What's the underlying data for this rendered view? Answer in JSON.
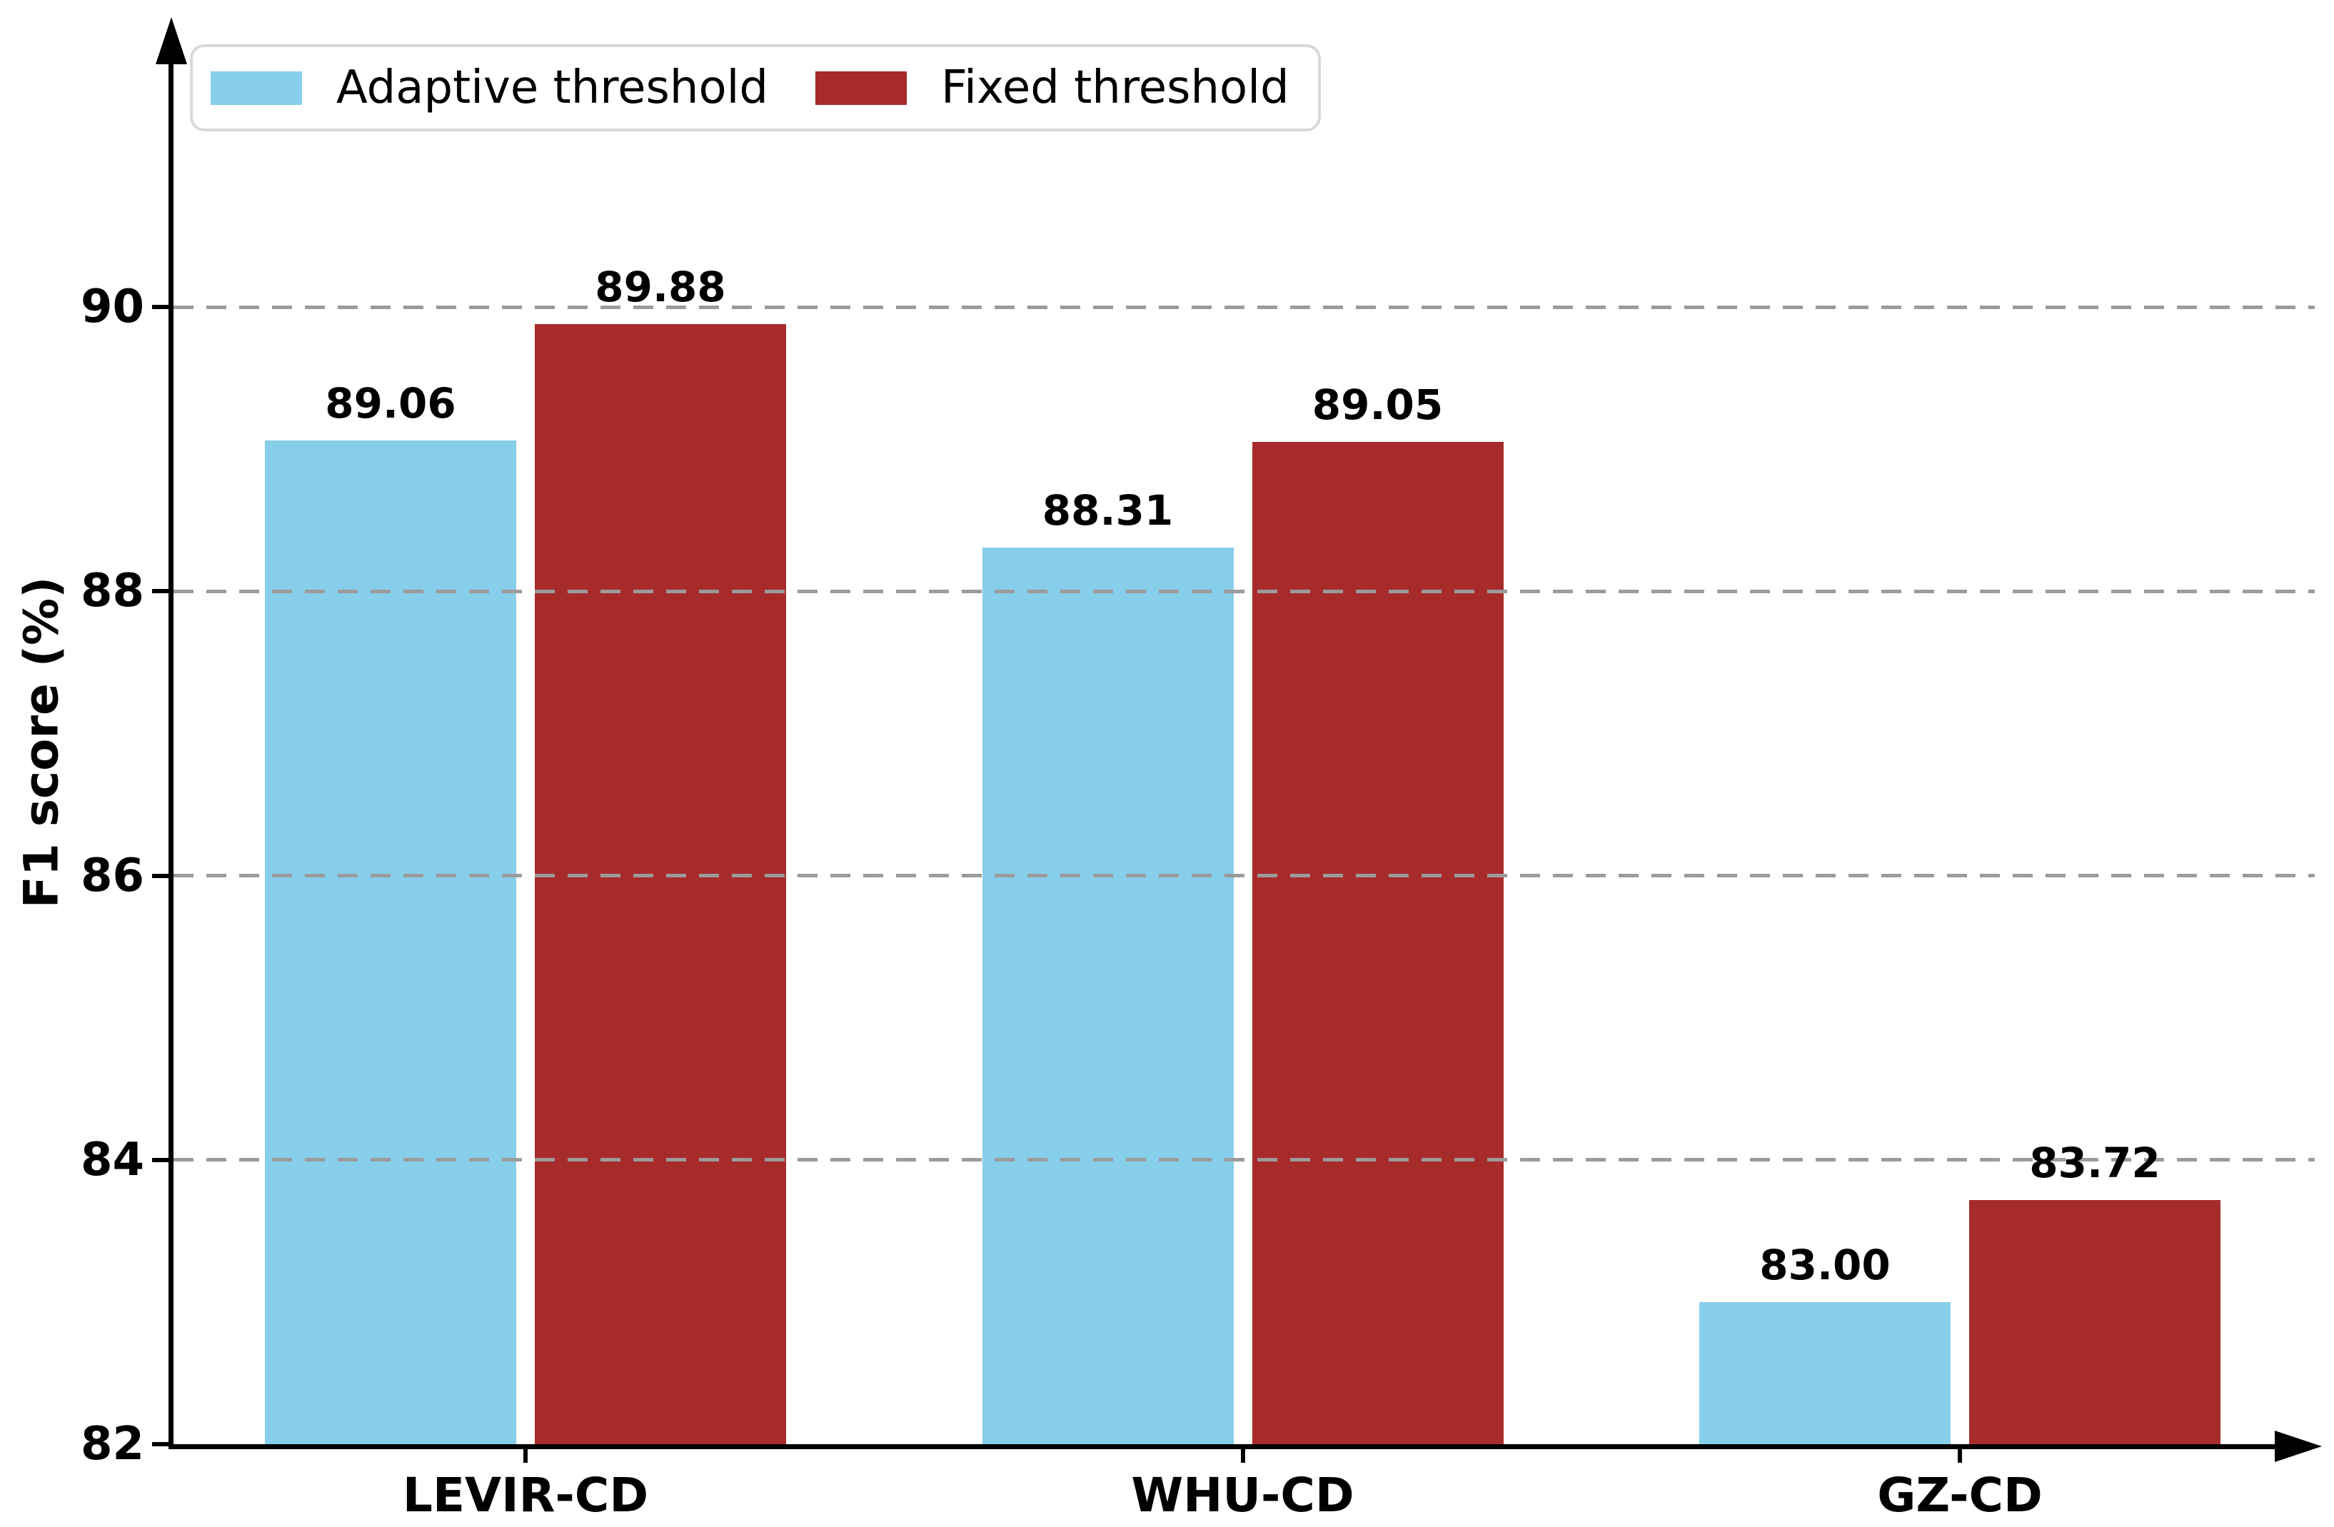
{
  "chart_data": {
    "type": "bar",
    "title": "",
    "categories": [
      "LEVIR-CD",
      "WHU-CD",
      "GZ-CD"
    ],
    "series": [
      {
        "name": "Adaptive threshold",
        "color": "#87CEEB",
        "values": [
          89.06,
          88.31,
          83.0
        ],
        "value_labels": [
          "89.06",
          "88.31",
          "83.00"
        ]
      },
      {
        "name": "Fixed threshold",
        "color": "#A82B2B",
        "values": [
          89.88,
          89.05,
          83.72
        ],
        "value_labels": [
          "89.88",
          "89.05",
          "83.72"
        ]
      }
    ],
    "xlabel": "",
    "ylabel": "F1 score (%)",
    "ylim": [
      82,
      92
    ],
    "yticks": [
      82,
      84,
      86,
      88,
      90
    ],
    "ytick_labels": [
      "82",
      "84",
      "86",
      "88",
      "90"
    ],
    "grid": "horizontal-dashed",
    "grid_color": "#9b9b9b",
    "axis_color": "#000000",
    "legend_position": "upper-left",
    "legend_border_color": "#d9d9d9"
  }
}
